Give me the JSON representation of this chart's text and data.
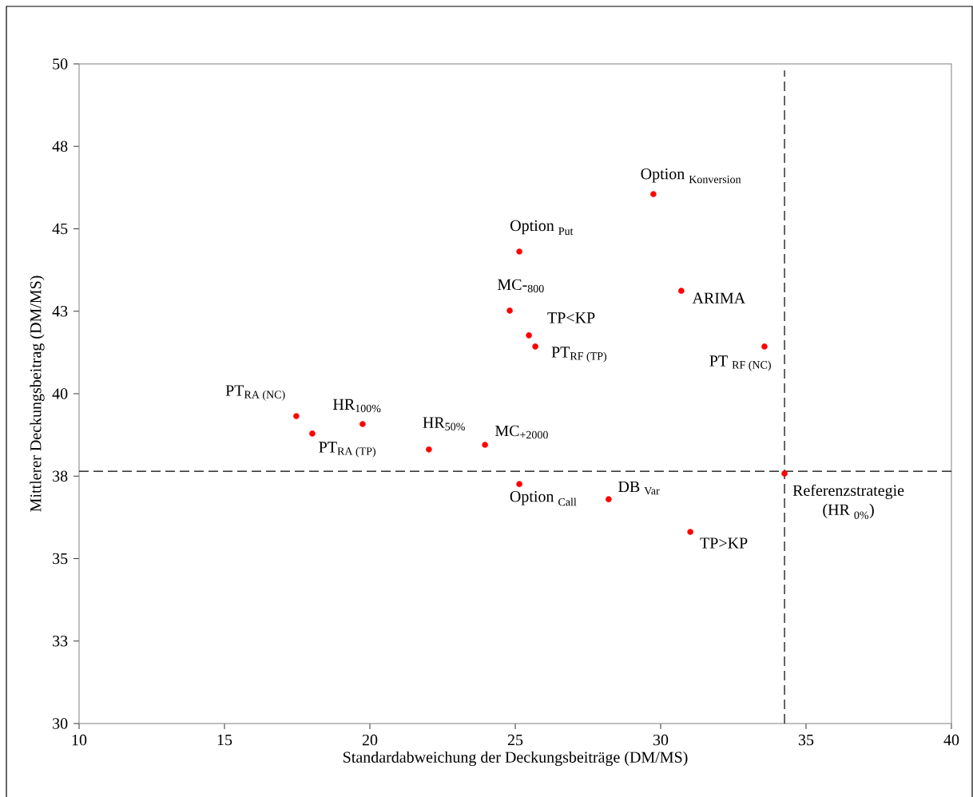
{
  "chart_data": {
    "type": "scatter",
    "xlabel": "Standardabweichung der Deckungsbeiträge  (DM/MS)",
    "ylabel": "Mittlerer Deckungsbeitrag (DM/MS)",
    "x": [
      29.75,
      25.14,
      30.71,
      24.81,
      25.47,
      25.69,
      33.57,
      17.47,
      18.02,
      19.75,
      22.03,
      23.96,
      25.14,
      28.21,
      31.02,
      34.26
    ],
    "values": [
      46.05,
      44.31,
      43.12,
      42.52,
      41.77,
      41.43,
      41.43,
      39.32,
      38.79,
      39.08,
      38.31,
      38.45,
      37.26,
      36.8,
      35.81,
      37.58
    ],
    "color": "#ff0000",
    "xlim": [
      10,
      40
    ],
    "xticks": [
      10,
      15,
      20,
      25,
      30,
      35,
      40
    ],
    "ylim": [
      30,
      50
    ],
    "yticks": [
      30,
      {
        "value": 32.5,
        "label": "33"
      },
      35,
      {
        "value": 37.5,
        "label": "38"
      },
      40,
      {
        "value": 42.5,
        "label": "43"
      },
      45,
      {
        "value": 47.5,
        "label": "48"
      },
      50
    ],
    "ref_lines": [
      {
        "axis": "x",
        "value": 34.26,
        "color": "#000000",
        "line_style": "dashed"
      },
      {
        "axis": "y",
        "value": 37.65,
        "color": "#000000",
        "line_style": "dashed"
      }
    ],
    "annotations": [
      {
        "text": "\\text{Option }_{\\text{Konversion}}",
        "x": 29.75,
        "y": 46.05
      },
      {
        "text": "\\text{Option }_{\\text{Put}}",
        "x": 25.14,
        "y": 44.31
      },
      {
        "text": "\\text{ARIMA}",
        "x": 30.71,
        "y": 43.12
      },
      {
        "text": "\\text{MC-}_{\\text{800}}",
        "x": 24.81,
        "y": 42.52
      },
      {
        "text": "\\text{TP<KP}",
        "x": 25.47,
        "y": 41.77
      },
      {
        "text": "\\text{PT}_{\\text{RF (TP)}}",
        "x": 25.69,
        "y": 41.43
      },
      {
        "text": "\\text{PT }_{\\text{RF (NC)}}",
        "x": 33.57,
        "y": 41.43
      },
      {
        "text": "\\text{PT}_{\\text{RA (NC)}}",
        "x": 17.47,
        "y": 39.32
      },
      {
        "text": "\\text{PT}_{\\text{RA (TP)}}",
        "x": 18.02,
        "y": 38.79
      },
      {
        "text": "\\text{HR}_{\\text{100\\%}}",
        "x": 19.75,
        "y": 39.08
      },
      {
        "text": "\\text{HR}_{\\text{50\\%}}",
        "x": 22.03,
        "y": 38.31
      },
      {
        "text": "\\text{MC}_{\\text{+2000}}",
        "x": 23.96,
        "y": 38.45
      },
      {
        "text": "\\text{Option }_{\\text{Call}}",
        "x": 25.14,
        "y": 37.26
      },
      {
        "text": "\\text{DB }_{\\text{Var}}",
        "x": 28.21,
        "y": 36.8
      },
      {
        "text": "\\text{TP>KP}",
        "x": 31.02,
        "y": 35.81
      },
      {
        "text": "\\begin{array}{c}\\text{Referenzstrategie}\\\\ \\text{(HR }_{\\text{0\\%}}\\text{)}\\end{array}",
        "x": 34.26,
        "y": 37.58
      }
    ]
  }
}
